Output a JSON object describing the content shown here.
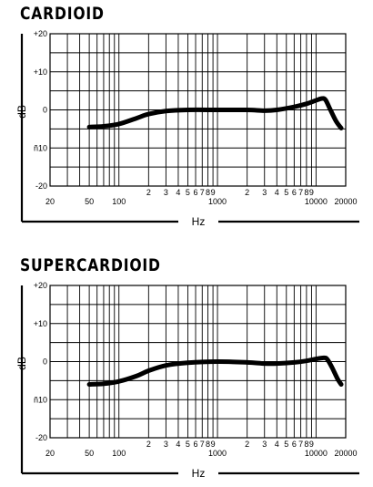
{
  "chart_data": [
    {
      "type": "line",
      "title": "CARDIOID",
      "xlabel": "Hz",
      "ylabel": "dB",
      "x_scale": "log",
      "xlim": [
        20,
        20000
      ],
      "ylim": [
        -20,
        20
      ],
      "grid": true,
      "x_tick_labels": [
        {
          "value": 20,
          "label": "20"
        },
        {
          "value": 50,
          "label": "50"
        },
        {
          "value": 100,
          "label": "100"
        },
        {
          "value": 200,
          "label": "2"
        },
        {
          "value": 300,
          "label": "3"
        },
        {
          "value": 400,
          "label": "4"
        },
        {
          "value": 500,
          "label": "5"
        },
        {
          "value": 600,
          "label": "6"
        },
        {
          "value": 700,
          "label": "7"
        },
        {
          "value": 800,
          "label": "8"
        },
        {
          "value": 900,
          "label": "9"
        },
        {
          "value": 1000,
          "label": "1000"
        },
        {
          "value": 2000,
          "label": "2"
        },
        {
          "value": 3000,
          "label": "3"
        },
        {
          "value": 4000,
          "label": "4"
        },
        {
          "value": 5000,
          "label": "5"
        },
        {
          "value": 6000,
          "label": "6"
        },
        {
          "value": 7000,
          "label": "7"
        },
        {
          "value": 8000,
          "label": "8"
        },
        {
          "value": 9000,
          "label": "9"
        },
        {
          "value": 10000,
          "label": "10000"
        },
        {
          "value": 20000,
          "label": "20000"
        }
      ],
      "y_tick_labels": [
        {
          "value": 20,
          "label": "+20"
        },
        {
          "value": 10,
          "label": "+10"
        },
        {
          "value": 0,
          "label": "0"
        },
        {
          "value": -10,
          "label": "ñ10"
        },
        {
          "value": -20,
          "label": "-20"
        }
      ],
      "series": [
        {
          "points": [
            {
              "x": 50,
              "y": -4.5
            },
            {
              "x": 70,
              "y": -4.3
            },
            {
              "x": 100,
              "y": -3.7
            },
            {
              "x": 150,
              "y": -2.2
            },
            {
              "x": 200,
              "y": -1.1
            },
            {
              "x": 300,
              "y": -0.3
            },
            {
              "x": 500,
              "y": 0
            },
            {
              "x": 1000,
              "y": 0
            },
            {
              "x": 2000,
              "y": 0
            },
            {
              "x": 3000,
              "y": -0.2
            },
            {
              "x": 4000,
              "y": 0
            },
            {
              "x": 6000,
              "y": 0.8
            },
            {
              "x": 8000,
              "y": 1.6
            },
            {
              "x": 10000,
              "y": 2.5
            },
            {
              "x": 11500,
              "y": 3.0
            },
            {
              "x": 12500,
              "y": 2.6
            },
            {
              "x": 14000,
              "y": 0
            },
            {
              "x": 16000,
              "y": -3.0
            },
            {
              "x": 18000,
              "y": -4.8
            }
          ]
        }
      ]
    },
    {
      "type": "line",
      "title": "SUPERCARDIOID",
      "xlabel": "Hz",
      "ylabel": "dB",
      "x_scale": "log",
      "xlim": [
        20,
        20000
      ],
      "ylim": [
        -20,
        20
      ],
      "grid": true,
      "x_tick_labels": [
        {
          "value": 20,
          "label": "20"
        },
        {
          "value": 50,
          "label": "50"
        },
        {
          "value": 100,
          "label": "100"
        },
        {
          "value": 200,
          "label": "2"
        },
        {
          "value": 300,
          "label": "3"
        },
        {
          "value": 400,
          "label": "4"
        },
        {
          "value": 500,
          "label": "5"
        },
        {
          "value": 600,
          "label": "6"
        },
        {
          "value": 700,
          "label": "7"
        },
        {
          "value": 800,
          "label": "8"
        },
        {
          "value": 900,
          "label": "9"
        },
        {
          "value": 1000,
          "label": "1000"
        },
        {
          "value": 2000,
          "label": "2"
        },
        {
          "value": 3000,
          "label": "3"
        },
        {
          "value": 4000,
          "label": "4"
        },
        {
          "value": 5000,
          "label": "5"
        },
        {
          "value": 6000,
          "label": "6"
        },
        {
          "value": 7000,
          "label": "7"
        },
        {
          "value": 8000,
          "label": "8"
        },
        {
          "value": 9000,
          "label": "9"
        },
        {
          "value": 10000,
          "label": "10000"
        },
        {
          "value": 20000,
          "label": "20000"
        }
      ],
      "y_tick_labels": [
        {
          "value": 20,
          "label": "+20"
        },
        {
          "value": 10,
          "label": "+10"
        },
        {
          "value": 0,
          "label": "0"
        },
        {
          "value": -10,
          "label": "ñ10"
        },
        {
          "value": -20,
          "label": "-20"
        }
      ],
      "series": [
        {
          "points": [
            {
              "x": 50,
              "y": -6.0
            },
            {
              "x": 70,
              "y": -5.8
            },
            {
              "x": 100,
              "y": -5.2
            },
            {
              "x": 150,
              "y": -3.8
            },
            {
              "x": 200,
              "y": -2.4
            },
            {
              "x": 300,
              "y": -1.0
            },
            {
              "x": 500,
              "y": -0.3
            },
            {
              "x": 1000,
              "y": 0
            },
            {
              "x": 2000,
              "y": -0.2
            },
            {
              "x": 3000,
              "y": -0.5
            },
            {
              "x": 4000,
              "y": -0.5
            },
            {
              "x": 6000,
              "y": -0.2
            },
            {
              "x": 8000,
              "y": 0.2
            },
            {
              "x": 10000,
              "y": 0.7
            },
            {
              "x": 12000,
              "y": 1.0
            },
            {
              "x": 13000,
              "y": 0.6
            },
            {
              "x": 14500,
              "y": -1.5
            },
            {
              "x": 16500,
              "y": -4.5
            },
            {
              "x": 18000,
              "y": -6.0
            }
          ]
        }
      ]
    }
  ]
}
